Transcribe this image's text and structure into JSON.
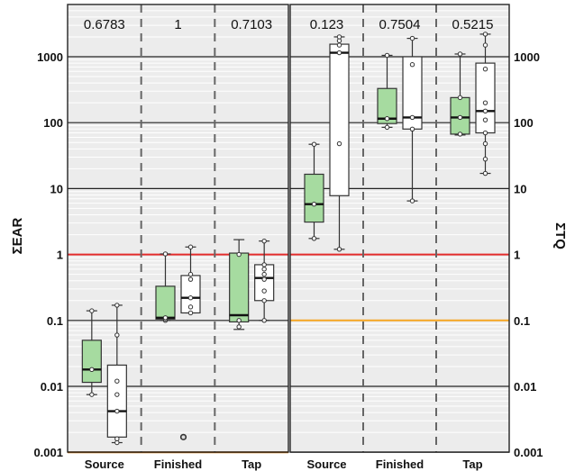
{
  "chart_data": [
    {
      "type": "box",
      "panel": "left",
      "ylabel": "ΣEAR",
      "yscale": "log",
      "ylim": [
        0.001,
        5000
      ],
      "yticks": [
        "0.001",
        "0.01",
        "0.1",
        "1",
        "10",
        "100",
        "1000"
      ],
      "grid": true,
      "reference_lines": [
        {
          "value": 1,
          "color": "#e32b2b"
        },
        {
          "value": 0.001,
          "color": "#c86a00"
        }
      ],
      "categories": [
        "Source",
        "Finished",
        "Tap"
      ],
      "p_values": [
        "0.6783",
        "1",
        "0.7103"
      ],
      "series": [
        {
          "fill": "#a6dba0",
          "boxes": [
            {
              "whisker_low": 0.0075,
              "q1": 0.0115,
              "median": 0.018,
              "q3": 0.05,
              "whisker_high": 0.14,
              "points": [
                0.0075,
                0.018,
                0.14
              ]
            },
            {
              "whisker_low": 0.1,
              "q1": 0.105,
              "median": 0.11,
              "q3": 0.33,
              "whisker_high": 1.02,
              "points": [
                0.1,
                0.105,
                0.11,
                1.02
              ]
            },
            {
              "whisker_low": 0.073,
              "q1": 0.095,
              "median": 0.12,
              "q3": 1.05,
              "whisker_high": 1.68,
              "points": [
                0.08,
                0.1,
                1.0
              ]
            }
          ]
        },
        {
          "fill": "#ffffff",
          "boxes": [
            {
              "whisker_low": 0.0014,
              "q1": 0.0017,
              "median": 0.0042,
              "q3": 0.021,
              "whisker_high": 0.17,
              "points": [
                0.0014,
                0.0016,
                0.0042,
                0.0075,
                0.012,
                0.06,
                0.17
              ]
            },
            {
              "whisker_low": 0.13,
              "q1": 0.13,
              "median": 0.22,
              "q3": 0.48,
              "whisker_high": 1.3,
              "points": [
                0.13,
                0.16,
                0.22,
                0.42,
                0.5,
                1.3
              ],
              "outliers": [
                0.0017
              ]
            },
            {
              "whisker_low": 0.1,
              "q1": 0.2,
              "median": 0.44,
              "q3": 0.7,
              "whisker_high": 1.6,
              "points": [
                0.1,
                0.2,
                0.28,
                0.42,
                0.5,
                0.6,
                0.7,
                1.6
              ]
            }
          ]
        }
      ]
    },
    {
      "type": "box",
      "panel": "right",
      "ylabel": "ΣTQ",
      "yscale": "log",
      "ylim": [
        0.001,
        5000
      ],
      "yticks": [
        "0.001",
        "0.01",
        "0.1",
        "1",
        "10",
        "100",
        "1000"
      ],
      "grid": true,
      "reference_lines": [
        {
          "value": 1,
          "color": "#e32b2b"
        },
        {
          "value": 0.1,
          "color": "#f5a623"
        }
      ],
      "categories": [
        "Source",
        "Finished",
        "Tap"
      ],
      "p_values": [
        "0.123",
        "0.7504",
        "0.5215"
      ],
      "series": [
        {
          "fill": "#a6dba0",
          "boxes": [
            {
              "whisker_low": 1.75,
              "q1": 3.1,
              "median": 5.8,
              "q3": 16.5,
              "whisker_high": 47,
              "points": [
                1.75,
                5.8,
                47
              ]
            },
            {
              "whisker_low": 85,
              "q1": 97,
              "median": 115,
              "q3": 330,
              "whisker_high": 1050,
              "points": [
                85,
                115,
                1050
              ]
            },
            {
              "whisker_low": 65,
              "q1": 67,
              "median": 120,
              "q3": 240,
              "whisker_high": 1100,
              "points": [
                67,
                120,
                240,
                1100
              ]
            }
          ]
        },
        {
          "fill": "#ffffff",
          "boxes": [
            {
              "whisker_low": 1.2,
              "q1": 7.8,
              "median": 1150,
              "q3": 1550,
              "whisker_high": 2000,
              "points": [
                1.2,
                48,
                1150,
                1500,
                1750,
                2000
              ]
            },
            {
              "whisker_low": 6.5,
              "q1": 80,
              "median": 120,
              "q3": 1000,
              "whisker_high": 1900,
              "points": [
                6.5,
                80,
                120,
                760,
                1900
              ]
            },
            {
              "whisker_low": 17,
              "q1": 70,
              "median": 150,
              "q3": 800,
              "whisker_high": 2200,
              "points": [
                17,
                28,
                48,
                70,
                110,
                150,
                200,
                650,
                1500,
                2200
              ]
            }
          ]
        }
      ]
    }
  ]
}
